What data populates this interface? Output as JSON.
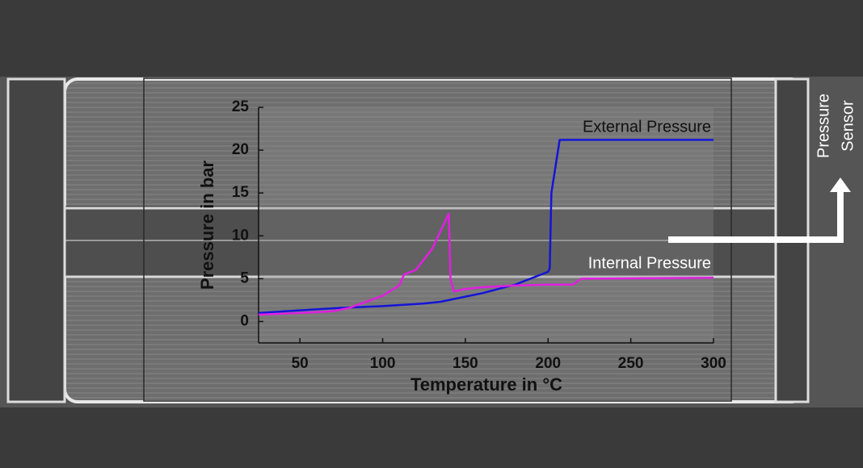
{
  "chart_data": {
    "type": "line",
    "xlabel": "Temperature in °C",
    "ylabel": "Pressure in bar",
    "xlim": [
      25,
      300
    ],
    "ylim": [
      -2.5,
      25
    ],
    "xticks": [
      50,
      100,
      150,
      200,
      250,
      300
    ],
    "yticks": [
      0,
      5,
      10,
      15,
      20,
      25
    ],
    "annotations": [
      "Pressure",
      "Sensor"
    ],
    "series": [
      {
        "name": "External Pressure",
        "color": "#1414d8",
        "x": [
          25,
          50,
          75,
          100,
          125,
          135,
          140,
          160,
          180,
          200,
          201,
          202,
          207,
          300
        ],
        "values": [
          1,
          1.3,
          1.6,
          1.8,
          2.1,
          2.3,
          2.5,
          3.3,
          4.3,
          5.8,
          6.2,
          15,
          21.2,
          21.2
        ]
      },
      {
        "name": "Internal Pressure",
        "color": "#e020e0",
        "x": [
          25,
          50,
          70,
          80,
          100,
          110,
          113,
          120,
          130,
          140,
          141,
          143,
          150,
          160,
          180,
          200,
          215,
          220,
          300
        ],
        "values": [
          0.8,
          1.0,
          1.2,
          1.6,
          3.0,
          4.2,
          5.5,
          6.0,
          8.5,
          12.6,
          5.0,
          3.5,
          3.8,
          4.0,
          4.2,
          4.3,
          4.3,
          5.0,
          5.1
        ]
      }
    ]
  }
}
